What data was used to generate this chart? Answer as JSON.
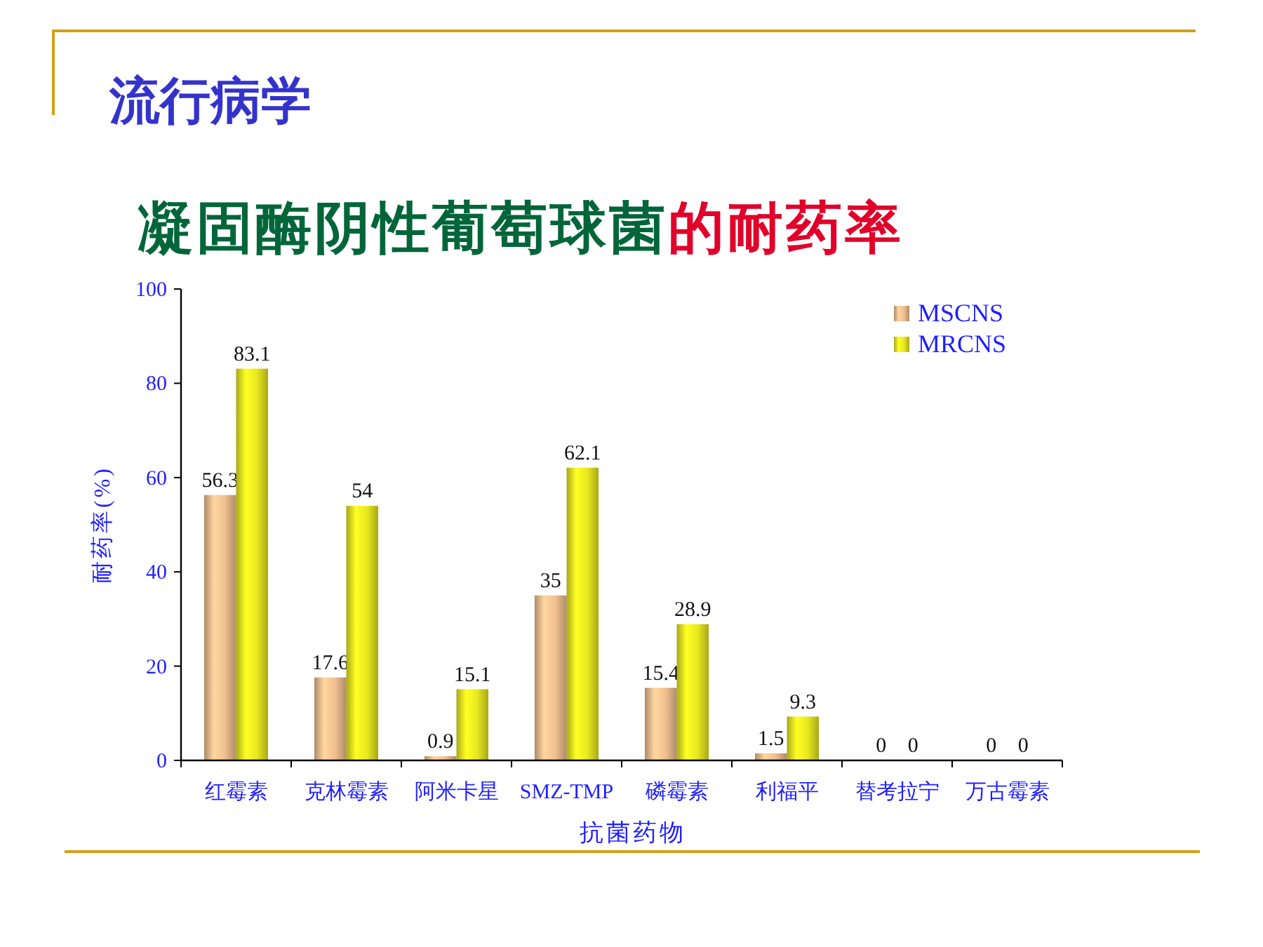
{
  "chart_data": {
    "type": "bar",
    "title": "流行病学",
    "subtitle": "凝固酶阴性葡萄球菌的耐药率",
    "xlabel": "抗菌药物",
    "ylabel": "耐药率(%)",
    "categories": [
      "红霉素",
      "克林霉素",
      "阿米卡星",
      "SMZ-TMP",
      "磷霉素",
      "利福平",
      "替考拉宁",
      "万古霉素"
    ],
    "series": [
      {
        "name": "MSCNS",
        "color": "#f0c090",
        "values": [
          56.3,
          17.6,
          0.9,
          35,
          15.4,
          1.5,
          0,
          0
        ]
      },
      {
        "name": "MRCNS",
        "color": "#e8e820",
        "values": [
          83.1,
          54,
          15.1,
          62.1,
          28.9,
          9.3,
          0,
          0
        ]
      }
    ],
    "ylim": [
      0,
      100
    ],
    "yticks": [
      0,
      20,
      40,
      60,
      80,
      100
    ],
    "legend": "top right",
    "data_labels": true
  }
}
